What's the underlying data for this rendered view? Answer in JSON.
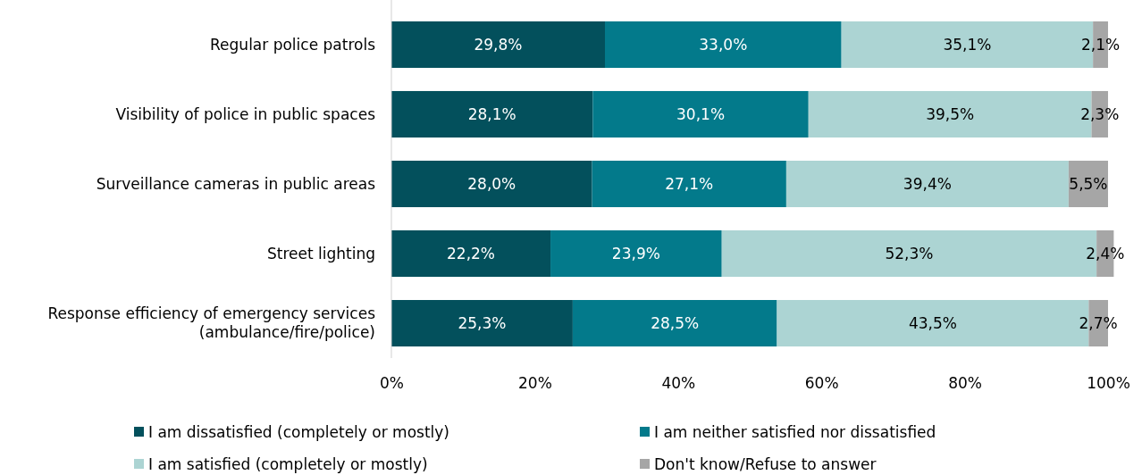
{
  "chart_data": {
    "type": "bar",
    "orientation": "horizontal",
    "stacked": true,
    "categories": [
      "Regular police patrols",
      "Visibility of police in public spaces",
      "Surveillance cameras in public areas",
      "Street lighting",
      "Response efficiency of emergency services (ambulance/fire/police)"
    ],
    "series": [
      {
        "name": "I am dissatisfied (completely or mostly)",
        "color": "#03505c",
        "values": [
          29.8,
          28.1,
          28.0,
          22.2,
          25.3
        ],
        "value_labels": [
          "29,8%",
          "28,1%",
          "28,0%",
          "22,2%",
          "25,3%"
        ]
      },
      {
        "name": "I am neither satisfied nor dissatisfied",
        "color": "#037a8b",
        "values": [
          33.0,
          30.1,
          27.1,
          23.9,
          28.5
        ],
        "value_labels": [
          "33,0%",
          "30,1%",
          "27,1%",
          "23,9%",
          "28,5%"
        ]
      },
      {
        "name": "I am satisfied (completely or mostly)",
        "color": "#acd4d3",
        "values": [
          35.1,
          39.5,
          39.4,
          52.3,
          43.5
        ],
        "value_labels": [
          "35,1%",
          "39,5%",
          "39,4%",
          "52,3%",
          "43,5%"
        ]
      },
      {
        "name": "Don't know/Refuse to answer",
        "color": "#a6a6a6",
        "values": [
          2.1,
          2.3,
          5.5,
          2.4,
          2.7
        ],
        "value_labels": [
          "2,1%",
          "2,3%",
          "5,5%",
          "2,4%",
          "2,7%"
        ]
      }
    ],
    "xlim": [
      0,
      101
    ],
    "xticks": [
      {
        "value": 0,
        "label": "0%"
      },
      {
        "value": 20,
        "label": "20%"
      },
      {
        "value": 40,
        "label": "40%"
      },
      {
        "value": 60,
        "label": "60%"
      },
      {
        "value": 80,
        "label": "80%"
      },
      {
        "value": 100,
        "label": "100%"
      }
    ],
    "legend": "bottom"
  }
}
